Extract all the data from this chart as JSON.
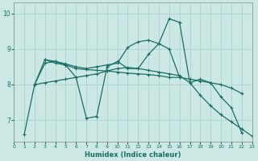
{
  "xlabel": "Humidex (Indice chaleur)",
  "xlim": [
    0,
    23
  ],
  "ylim": [
    6.4,
    10.3
  ],
  "yticks": [
    7,
    8,
    9,
    10
  ],
  "xticks": [
    0,
    1,
    2,
    3,
    4,
    5,
    6,
    7,
    8,
    9,
    10,
    11,
    12,
    13,
    14,
    15,
    16,
    17,
    18,
    19,
    20,
    21,
    22,
    23
  ],
  "bg_color": "#cce8e4",
  "grid_color": "#aad4d0",
  "line_color": "#1a6e65",
  "line1_x": [
    1,
    2,
    3,
    4,
    5,
    6,
    7,
    8,
    9,
    10,
    11,
    12,
    13,
    14,
    15,
    16,
    17,
    18,
    19,
    20,
    21,
    22
  ],
  "line1_y": [
    6.6,
    8.0,
    8.7,
    8.6,
    8.55,
    8.2,
    7.05,
    7.1,
    8.5,
    8.65,
    8.45,
    8.45,
    8.85,
    9.15,
    9.85,
    9.75,
    8.05,
    8.15,
    8.05,
    7.65,
    7.35,
    6.65
  ],
  "line2_x": [
    2,
    3,
    4,
    5,
    6,
    7,
    8,
    9,
    10,
    11,
    12,
    13,
    14,
    15,
    16,
    17,
    18,
    19,
    20,
    21,
    22
  ],
  "line2_y": [
    8.0,
    8.6,
    8.65,
    8.55,
    8.45,
    8.42,
    8.4,
    8.38,
    8.35,
    8.32,
    8.3,
    8.28,
    8.25,
    8.2,
    8.2,
    8.15,
    8.1,
    8.05,
    8.0,
    7.9,
    7.75
  ],
  "line3_x": [
    3,
    4,
    5,
    6,
    7,
    8,
    9,
    10,
    11,
    12,
    13,
    14,
    15,
    16
  ],
  "line3_y": [
    8.7,
    8.65,
    8.58,
    8.5,
    8.45,
    8.5,
    8.55,
    8.6,
    9.05,
    9.2,
    9.25,
    9.15,
    9.0,
    8.2
  ],
  "line4_x": [
    2,
    3,
    4,
    5,
    6,
    7,
    8,
    9,
    10,
    11,
    12,
    13,
    14,
    15,
    16,
    17,
    18,
    19,
    20,
    21,
    22,
    23
  ],
  "line4_y": [
    8.0,
    8.05,
    8.1,
    8.15,
    8.2,
    8.25,
    8.3,
    8.38,
    8.45,
    8.48,
    8.45,
    8.4,
    8.35,
    8.3,
    8.25,
    8.05,
    7.7,
    7.4,
    7.15,
    6.95,
    6.75,
    6.55
  ]
}
